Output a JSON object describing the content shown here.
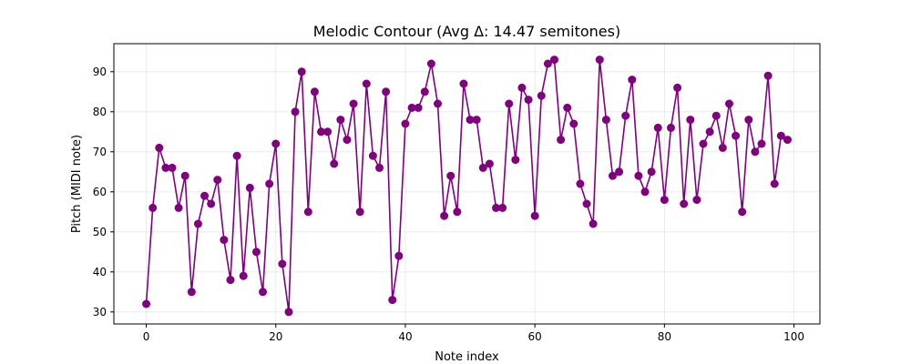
{
  "chart_data": {
    "type": "line",
    "title": "Melodic Contour (Avg Δ: 14.47 semitones)",
    "xlabel": "Note index",
    "ylabel": "Pitch (MIDI note)",
    "xlim": [
      -5,
      104
    ],
    "ylim": [
      27,
      97
    ],
    "xticks": [
      0,
      20,
      40,
      60,
      80,
      100
    ],
    "yticks": [
      30,
      40,
      50,
      60,
      70,
      80,
      90
    ],
    "grid": true,
    "series": [
      {
        "name": "pitch",
        "color": "#800080",
        "x": [
          0,
          1,
          2,
          3,
          4,
          5,
          6,
          7,
          8,
          9,
          10,
          11,
          12,
          13,
          14,
          15,
          16,
          17,
          18,
          19,
          20,
          21,
          22,
          23,
          24,
          25,
          26,
          27,
          28,
          29,
          30,
          31,
          32,
          33,
          34,
          35,
          36,
          37,
          38,
          39,
          40,
          41,
          42,
          43,
          44,
          45,
          46,
          47,
          48,
          49,
          50,
          51,
          52,
          53,
          54,
          55,
          56,
          57,
          58,
          59,
          60,
          61,
          62,
          63,
          64,
          65,
          66,
          67,
          68,
          69,
          70,
          71,
          72,
          73,
          74,
          75,
          76,
          77,
          78,
          79,
          80,
          81,
          82,
          83,
          84,
          85,
          86,
          87,
          88,
          89,
          90,
          91,
          92,
          93,
          94,
          95,
          96,
          97,
          98,
          99
        ],
        "values": [
          32,
          56,
          71,
          66,
          66,
          56,
          64,
          35,
          52,
          59,
          57,
          63,
          48,
          38,
          69,
          39,
          61,
          45,
          35,
          62,
          72,
          42,
          30,
          80,
          90,
          55,
          85,
          75,
          75,
          67,
          78,
          73,
          82,
          55,
          87,
          69,
          66,
          85,
          33,
          44,
          77,
          81,
          81,
          85,
          92,
          82,
          54,
          64,
          55,
          87,
          78,
          78,
          66,
          67,
          56,
          56,
          82,
          68,
          86,
          83,
          54,
          84,
          92,
          93,
          73,
          81,
          77,
          62,
          57,
          52,
          93,
          78,
          64,
          65,
          79,
          88,
          64,
          60,
          65,
          76,
          58,
          76,
          86,
          57,
          78,
          58,
          72,
          75,
          79,
          71,
          82,
          74,
          55,
          78,
          70,
          72,
          89,
          62,
          74,
          73
        ]
      }
    ]
  }
}
